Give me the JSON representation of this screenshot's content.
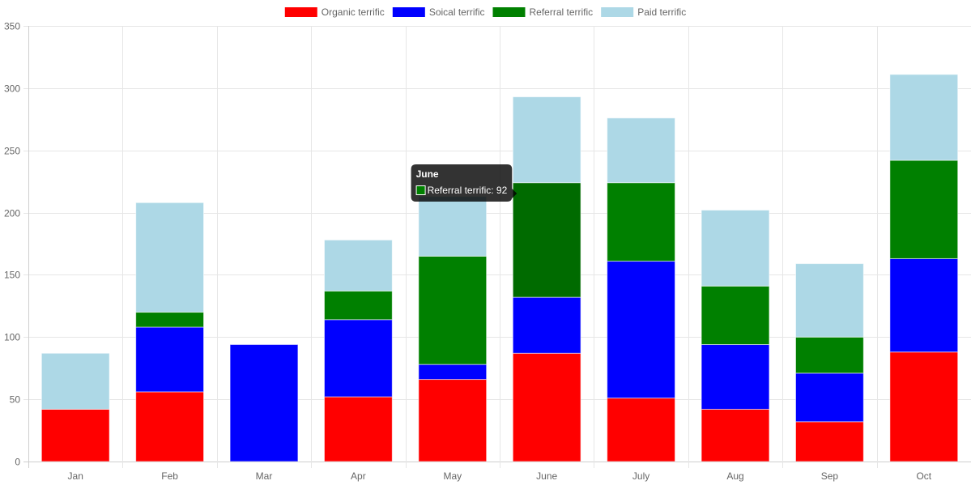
{
  "chart_data": {
    "type": "bar",
    "stacked": true,
    "categories": [
      "Jan",
      "Feb",
      "Mar",
      "Apr",
      "May",
      "June",
      "July",
      "Aug",
      "Sep",
      "Oct"
    ],
    "series": [
      {
        "name": "Organic terrific",
        "color": "#ff0000",
        "values": [
          42,
          56,
          0,
          52,
          66,
          87,
          51,
          42,
          32,
          88
        ]
      },
      {
        "name": "Soical terrific",
        "color": "#0000ff",
        "values": [
          0,
          52,
          94,
          62,
          12,
          45,
          110,
          52,
          39,
          75
        ]
      },
      {
        "name": "Referral terrific",
        "color": "#008000",
        "values": [
          0,
          12,
          0,
          23,
          87,
          92,
          63,
          47,
          29,
          79
        ]
      },
      {
        "name": "Paid terrific",
        "color": "#add8e6",
        "values": [
          45,
          88,
          0,
          41,
          48,
          69,
          52,
          61,
          59,
          69
        ]
      }
    ],
    "ylim": [
      0,
      350
    ],
    "yticks": [
      0,
      50,
      100,
      150,
      200,
      250,
      300,
      350
    ],
    "grid": true,
    "legend_position": "top",
    "tooltip": {
      "title": "June",
      "label": "Referral terrific: 92",
      "category": "June",
      "series": "Referral terrific",
      "hover_color": "#006b00"
    }
  }
}
